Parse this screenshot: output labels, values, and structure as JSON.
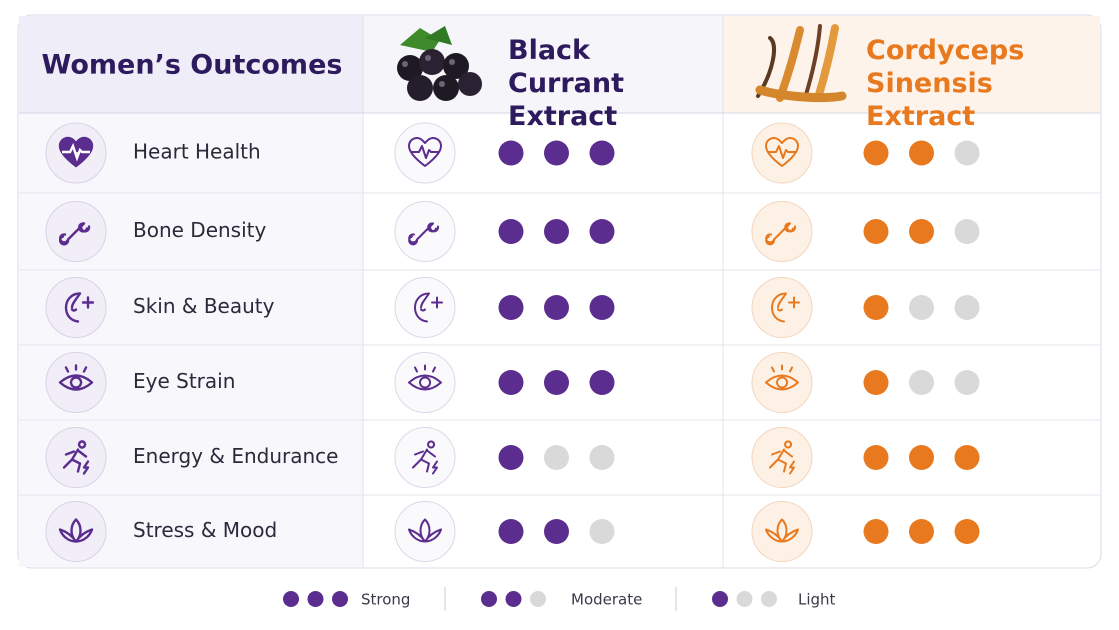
{
  "header": {
    "title": "Women’s Outcomes",
    "columns": [
      {
        "name": "Black Currant Extract",
        "color": "#5b2d8e"
      },
      {
        "name": "Cordyceps Sinensis Extract",
        "color": "#e8791e"
      }
    ]
  },
  "scale": 3,
  "rows": [
    {
      "label": "Heart Health",
      "ratings": [
        3,
        2
      ]
    },
    {
      "label": "Bone Density",
      "ratings": [
        3,
        2
      ]
    },
    {
      "label": "Skin & Beauty",
      "ratings": [
        3,
        1
      ]
    },
    {
      "label": "Eye Strain",
      "ratings": [
        3,
        1
      ]
    },
    {
      "label": "Energy & Endurance",
      "ratings": [
        1,
        3
      ]
    },
    {
      "label": "Stress & Mood",
      "ratings": [
        2,
        3
      ]
    }
  ],
  "legend": [
    {
      "label": "Strong",
      "level": 3
    },
    {
      "label": "Moderate",
      "level": 2
    },
    {
      "label": "Light",
      "level": 1
    }
  ]
}
